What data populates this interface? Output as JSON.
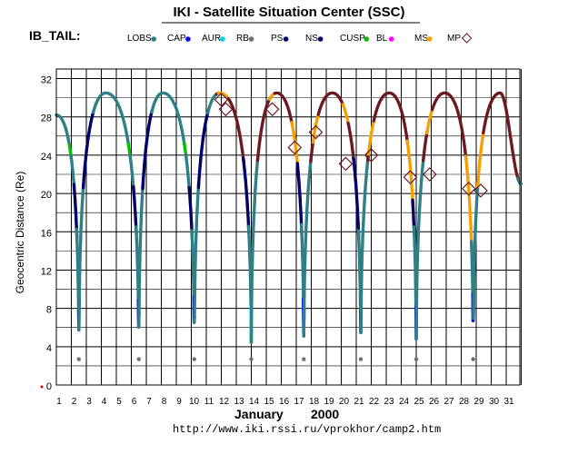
{
  "header": {
    "title": "IKI - Satellite Situation Center (SSC)",
    "panel_label": "IB_TAIL:"
  },
  "legend": [
    {
      "label": "LOBS",
      "color": "#2e7f86"
    },
    {
      "label": "CAP",
      "color": "#0000ff"
    },
    {
      "label": "AUR",
      "color": "#00d8e0"
    },
    {
      "label": "RB",
      "color": "#6e6e6e"
    },
    {
      "label": "PS",
      "color": "#000066"
    },
    {
      "label": "NS",
      "color": "#000066"
    },
    {
      "label": "CUSP",
      "color": "#00c000"
    },
    {
      "label": "BL",
      "color": "#ff00ff"
    },
    {
      "label": "MS",
      "color": "#f5a000"
    },
    {
      "label": "MP",
      "color": "#6b1a20",
      "icon": "diamond-icon"
    }
  ],
  "footer": {
    "month": "January",
    "year": "2000",
    "url": "http://www.iki.rssi.ru/vprokhor/camp2.htm"
  },
  "chart_data": {
    "type": "line",
    "title": "IKI - Satellite Situation Center (SSC)",
    "xlabel": "January 2000",
    "ylabel": "Geocentric Distance (Re)",
    "xlim": [
      1,
      32
    ],
    "ylim": [
      0,
      33
    ],
    "x_ticks": [
      "1",
      "2",
      "3",
      "4",
      "5",
      "6",
      "7",
      "8",
      "9",
      "10",
      "11",
      "12",
      "13",
      "14",
      "15",
      "16",
      "17",
      "18",
      "19",
      "20",
      "21",
      "22",
      "23",
      "24",
      "25",
      "26",
      "27",
      "28",
      "29",
      "30",
      "31"
    ],
    "y_ticks": [
      0,
      4,
      8,
      12,
      16,
      20,
      24,
      28,
      32
    ],
    "grid": true,
    "orbit": {
      "start_distance": 28.2,
      "apogee": 30.5,
      "perigee": 2.7,
      "perigee_days": [
        2.5,
        6.5,
        10.2,
        14.0,
        17.5,
        21.3,
        25.0,
        28.8
      ],
      "apogee_days": [
        4.3,
        8.1,
        11.9,
        15.7,
        19.4,
        23.2,
        26.9,
        30.6
      ],
      "orbit_period_days": 3.8
    },
    "regions_by_orbit_side": {
      "low_altitude_sequence": [
        "CAP",
        "AUR",
        "BL",
        "RB"
      ],
      "outbound_tail": "NS",
      "lobe": "LOBS",
      "magnetosheath": "MS",
      "magnetopause": "MP",
      "cusp": "CUSP"
    },
    "magnetopause_crossings": [
      {
        "day": 12.0,
        "distance": 29.8
      },
      {
        "day": 12.3,
        "distance": 28.8
      },
      {
        "day": 15.4,
        "distance": 28.8
      },
      {
        "day": 16.9,
        "distance": 24.8
      },
      {
        "day": 18.3,
        "distance": 26.4
      },
      {
        "day": 20.3,
        "distance": 23.1
      },
      {
        "day": 22.0,
        "distance": 24.0
      },
      {
        "day": 24.6,
        "distance": 21.7
      },
      {
        "day": 25.9,
        "distance": 22.0
      },
      {
        "day": 28.5,
        "distance": 20.5
      },
      {
        "day": 29.3,
        "distance": 20.3
      }
    ]
  }
}
